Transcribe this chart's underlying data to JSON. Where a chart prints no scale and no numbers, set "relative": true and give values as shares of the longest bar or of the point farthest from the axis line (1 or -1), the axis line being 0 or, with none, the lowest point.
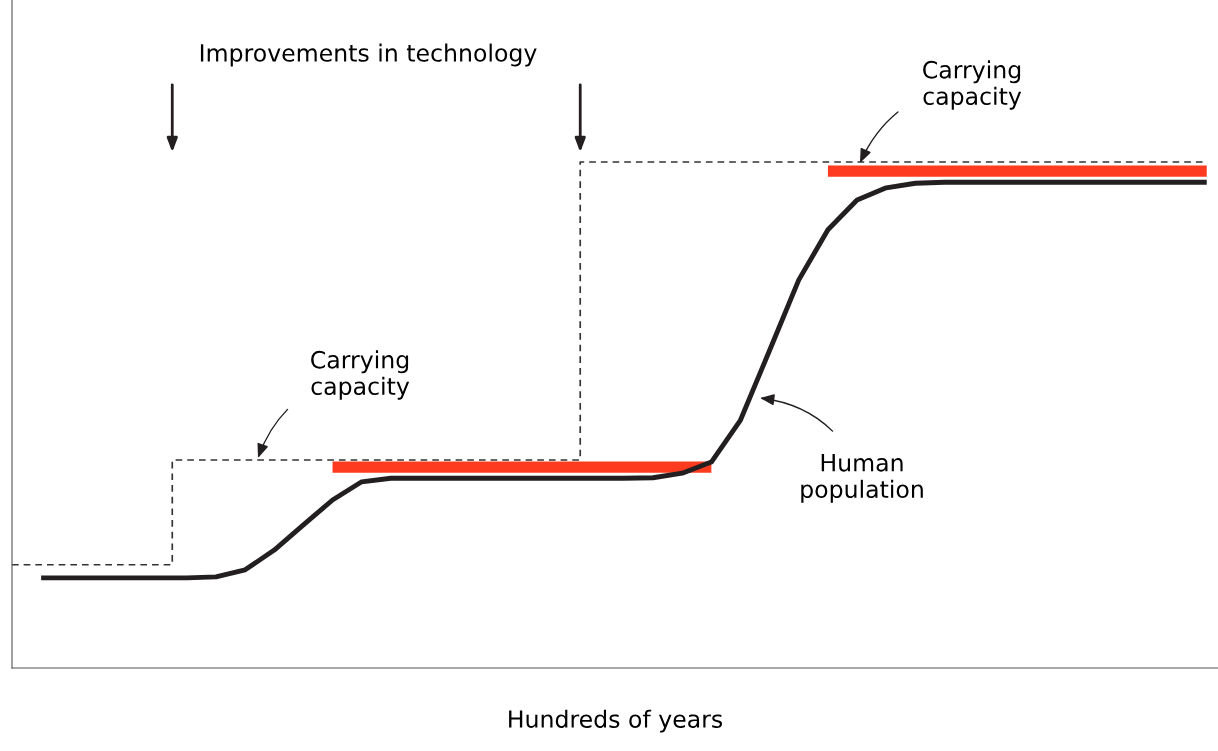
{
  "chart_data": {
    "type": "line",
    "relative": true,
    "xlabel": "Hundreds of years",
    "categories": [
      null,
      null,
      null,
      null,
      null,
      null,
      null,
      null,
      null,
      null,
      null,
      null,
      null,
      null,
      null,
      null,
      null,
      null,
      null,
      null,
      null,
      null,
      null,
      null,
      null,
      null,
      null,
      null,
      null,
      null,
      null,
      null,
      null,
      null,
      null,
      null,
      null,
      null,
      null,
      null,
      null,
      null
    ],
    "series": [
      {
        "color": "#231f20",
        "values": [
          null,
          0.178,
          0.178,
          0.178,
          0.178,
          0.178,
          0.178,
          0.18,
          0.194,
          0.233,
          0.283,
          0.332,
          0.368,
          0.375,
          0.375,
          0.375,
          0.375,
          0.375,
          0.375,
          0.375,
          0.375,
          0.375,
          0.376,
          0.385,
          0.407,
          0.49,
          0.628,
          0.767,
          0.866,
          0.925,
          0.949,
          0.958,
          0.96,
          0.96,
          0.96,
          0.96,
          0.96,
          0.96,
          0.96,
          0.96,
          0.96,
          0.96
        ]
      },
      {
        "type": "step",
        "line_style": "dashed",
        "color": "#333333",
        "values": [
          0.204,
          0.204,
          0.204,
          0.204,
          0.204,
          0.204,
          0.411,
          0.411,
          0.411,
          0.411,
          0.411,
          0.411,
          0.411,
          0.411,
          0.411,
          0.411,
          0.411,
          0.411,
          0.411,
          0.411,
          1,
          1,
          1,
          1,
          1,
          1,
          1,
          1,
          1,
          1,
          1,
          1,
          1,
          1,
          1,
          1,
          1,
          1,
          1,
          1,
          1,
          1
        ]
      },
      {
        "color": "#ff3b1f",
        "values": [
          null,
          null,
          null,
          null,
          null,
          null,
          null,
          null,
          null,
          null,
          null,
          0.397,
          0.397,
          0.397,
          0.397,
          0.397,
          0.397,
          0.397,
          0.397,
          0.397,
          0.397,
          0.397,
          0.397,
          0.397,
          0.397,
          null,
          null,
          null,
          null,
          null,
          null,
          null,
          null,
          null,
          null,
          null,
          null,
          null,
          null,
          null,
          null,
          null
        ]
      },
      {
        "color": "#ff3b1f",
        "values": [
          null,
          null,
          null,
          null,
          null,
          null,
          null,
          null,
          null,
          null,
          null,
          null,
          null,
          null,
          null,
          null,
          null,
          null,
          null,
          null,
          null,
          null,
          null,
          null,
          null,
          null,
          null,
          null,
          0.982,
          0.982,
          0.982,
          0.982,
          0.982,
          0.982,
          0.982,
          0.982,
          0.982,
          0.982,
          0.982,
          0.982,
          0.982,
          0.982
        ]
      }
    ],
    "annotations": [
      "Improvements in technology",
      "Carrying\ncapacity",
      "Carrying\ncapacity",
      "Human\npopulation"
    ]
  }
}
